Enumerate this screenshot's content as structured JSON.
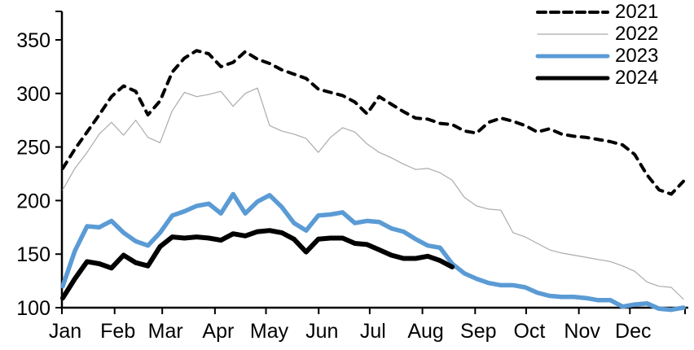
{
  "chart_data": {
    "type": "line",
    "title": "",
    "grid": false,
    "legend_position": "top-right",
    "x_axis": {
      "months": [
        "Jan",
        "Feb",
        "Mar",
        "Apr",
        "May",
        "Jun",
        "Jul",
        "Aug",
        "Sep",
        "Oct",
        "Nov",
        "Dec"
      ],
      "frequency": "weekly"
    },
    "y_axis": {
      "ticks": [
        100,
        150,
        200,
        250,
        300,
        350
      ],
      "range": [
        100,
        350
      ]
    },
    "colors": {
      "black": "#000000",
      "gray": "#ababab",
      "blue": "#5b9bd5"
    },
    "series": [
      {
        "name": "2021",
        "color": "#000000",
        "style": "dashed",
        "width": 4,
        "values": [
          230,
          248,
          264,
          280,
          297,
          307,
          302,
          280,
          293,
          320,
          333,
          340,
          337,
          325,
          329,
          339,
          332,
          328,
          322,
          318,
          314,
          304,
          301,
          298,
          292,
          281,
          297,
          290,
          283,
          277,
          276,
          272,
          271,
          265,
          263,
          273,
          277,
          274,
          270,
          264,
          267,
          262,
          260,
          259,
          257,
          255,
          252,
          243,
          224,
          210,
          206,
          218
        ]
      },
      {
        "name": "2022",
        "color": "#ababab",
        "style": "solid",
        "width": 1.2,
        "values": [
          210,
          230,
          245,
          262,
          273,
          261,
          275,
          259,
          254,
          284,
          301,
          297,
          299,
          302,
          288,
          300,
          305,
          270,
          265,
          262,
          258,
          245,
          259,
          268,
          264,
          253,
          245,
          240,
          234,
          229,
          230,
          226,
          219,
          203,
          195,
          192,
          191,
          170,
          166,
          160,
          154,
          151,
          149,
          147,
          145,
          143,
          139,
          134,
          124,
          120,
          119,
          108
        ]
      },
      {
        "name": "2023",
        "color": "#5b9bd5",
        "style": "solid",
        "width": 5.5,
        "values": [
          120,
          153,
          176,
          175,
          181,
          170,
          162,
          158,
          170,
          186,
          190,
          195,
          197,
          188,
          206,
          188,
          199,
          205,
          194,
          179,
          172,
          186,
          187,
          189,
          179,
          181,
          180,
          174,
          171,
          164,
          158,
          156,
          141,
          132,
          127,
          123,
          121,
          121,
          119,
          114,
          111,
          110,
          110,
          109,
          107,
          107,
          101,
          103,
          104,
          99,
          98,
          100
        ]
      },
      {
        "name": "2024",
        "color": "#000000",
        "style": "solid",
        "width": 6,
        "values": [
          109,
          127,
          143,
          141,
          137,
          149,
          142,
          139,
          157,
          166,
          165,
          166,
          165,
          163,
          169,
          167,
          171,
          172,
          170,
          164,
          152,
          164,
          165,
          165,
          160,
          159,
          154,
          149,
          146,
          146,
          148,
          144,
          138
        ]
      }
    ]
  }
}
